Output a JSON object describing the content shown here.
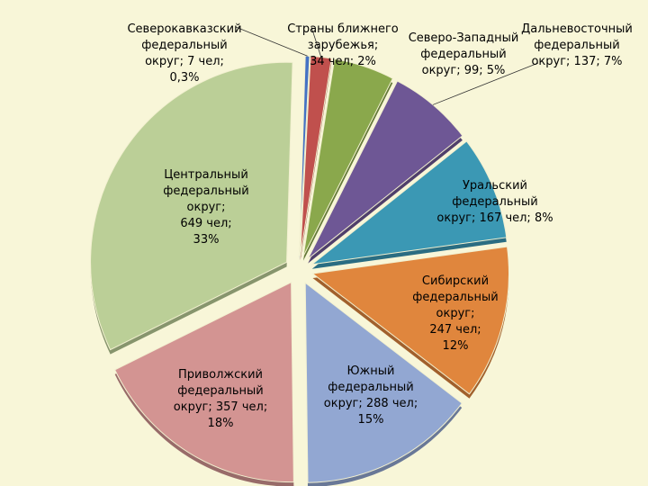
{
  "chart_data": {
    "type": "pie",
    "style": "exploded-3d",
    "slices": [
      {
        "label": "Северокавказский федеральный округ; 7 чел; 0,3%",
        "value": 7,
        "percent": 0.3,
        "color": "#4472c4"
      },
      {
        "label": "Страны ближнего зарубежья; 34 чел; 2%",
        "value": 34,
        "percent": 2,
        "color": "#c0504d"
      },
      {
        "label": "Северо-Западный федеральный округ; 99; 5%",
        "value": 99,
        "percent": 5,
        "color": "#8aa84c"
      },
      {
        "label": "Дальневосточный федеральный округ; 137; 7%",
        "value": 137,
        "percent": 7,
        "color": "#6e5795"
      },
      {
        "label": "Уральский федеральный округ; 167 чел; 8%",
        "value": 167,
        "percent": 8,
        "color": "#3b98b4"
      },
      {
        "label": "Сибирский федеральный округ; 247 чел; 12%",
        "value": 247,
        "percent": 12,
        "color": "#e0863d"
      },
      {
        "label": "Южный федеральный округ; 288 чел; 15%",
        "value": 288,
        "percent": 15,
        "color": "#92a7d2"
      },
      {
        "label": "Приволжский федеральный округ; 357 чел; 18%",
        "value": 357,
        "percent": 18,
        "color": "#d39492"
      },
      {
        "label": "Центральный федеральный округ; 649 чел; 33%",
        "value": 649,
        "percent": 33,
        "color": "#bbcf97"
      }
    ],
    "label_lines": [
      "Северокавказский\nфедеральный\nокруг;  7 чел;\n0,3%",
      "Страны ближнего\nзарубежья;\n34 чел;  2%",
      "Северо-Западный\nфедеральный\nокруг; 99; 5%",
      "Дальневосточный\nфедеральный\nокруг; 137; 7%",
      "Уральский\nфедеральный\nокруг; 167 чел; 8%",
      "Сибирский\nфедеральный\nокруг;\n247 чел;\n12%",
      "Южный\nфедеральный\nокруг; 288 чел;\n15%",
      "Приволжский\nфедеральный\nокруг; 357 чел;\n18%",
      "Центральный\nфедеральный\nокруг;\n649 чел;\n33%"
    ],
    "legend": "none"
  }
}
